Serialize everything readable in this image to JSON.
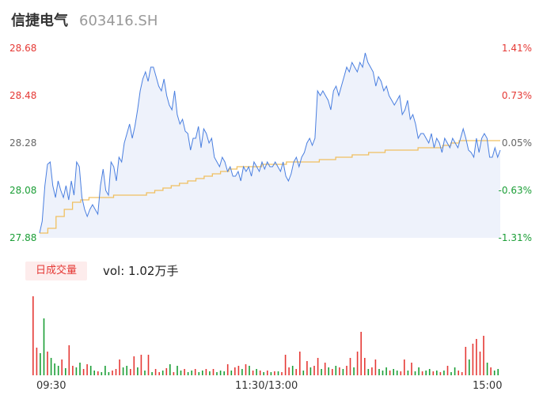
{
  "header": {
    "name": "信捷电气",
    "code": "603416.SH"
  },
  "volume": {
    "tag": "日成交量",
    "text": "vol: 1.02万手"
  },
  "colors": {
    "price_line": "#4a7fe0",
    "avg_line": "#f0c060",
    "up": "#e53935",
    "down": "#1b9e36",
    "fill": "#eef2fb"
  },
  "chart_data": [
    {
      "type": "line",
      "y_ticks": [
        "28.68",
        "28.48",
        "28.28",
        "28.08",
        "27.88"
      ],
      "pct_ticks": [
        "1.41%",
        "0.73%",
        "0.05%",
        "-0.63%",
        "-1.31%"
      ],
      "ylim": [
        27.88,
        28.68
      ],
      "x_tick_labels": [
        "09:30",
        "11:30/13:00",
        "15:00"
      ],
      "series": [
        {
          "key": "price",
          "values": [
            27.9,
            27.95,
            28.1,
            28.19,
            28.2,
            28.1,
            28.05,
            28.12,
            28.08,
            28.05,
            28.1,
            28.04,
            28.12,
            28.06,
            28.2,
            28.18,
            28.05,
            28.0,
            27.97,
            28.0,
            28.02,
            28.0,
            27.98,
            28.1,
            28.17,
            28.08,
            28.06,
            28.2,
            28.18,
            28.12,
            28.22,
            28.2,
            28.28,
            28.32,
            28.36,
            28.3,
            28.35,
            28.42,
            28.5,
            28.55,
            28.58,
            28.54,
            28.6,
            28.6,
            28.56,
            28.52,
            28.5,
            28.55,
            28.48,
            28.44,
            28.42,
            28.5,
            28.4,
            28.36,
            28.38,
            28.33,
            28.32,
            28.25,
            28.3,
            28.3,
            28.35,
            28.26,
            28.34,
            28.32,
            28.28,
            28.3,
            28.22,
            28.2,
            28.18,
            28.22,
            28.2,
            28.16,
            28.18,
            28.14,
            28.14,
            28.16,
            28.12,
            28.18,
            28.16,
            28.18,
            28.14,
            28.2,
            28.18,
            28.16,
            28.2,
            28.17,
            28.2,
            28.18,
            28.18,
            28.2,
            28.18,
            28.16,
            28.2,
            28.14,
            28.12,
            28.15,
            28.2,
            28.22,
            28.18,
            28.22,
            28.24,
            28.28,
            28.3,
            28.27,
            28.3,
            28.5,
            28.48,
            28.5,
            28.48,
            28.46,
            28.42,
            28.5,
            28.52,
            28.48,
            28.52,
            28.56,
            28.6,
            28.58,
            28.62,
            28.6,
            28.58,
            28.62,
            28.6,
            28.66,
            28.62,
            28.6,
            28.58,
            28.52,
            28.56,
            28.54,
            28.5,
            28.52,
            28.48,
            28.46,
            28.44,
            28.46,
            28.48,
            28.4,
            28.42,
            28.46,
            28.38,
            28.4,
            28.36,
            28.3,
            28.32,
            28.32,
            28.3,
            28.28,
            28.32,
            28.26,
            28.3,
            28.28,
            28.24,
            28.3,
            28.28,
            28.26,
            28.3,
            28.28,
            28.26,
            28.3,
            28.34,
            28.3,
            28.25,
            28.24,
            28.22,
            28.3,
            28.24,
            28.3,
            28.32,
            28.3,
            28.22,
            28.22,
            28.26,
            28.22,
            28.25
          ],
          "color": "#4a7fe0"
        },
        {
          "key": "avg",
          "values": [
            27.9,
            27.92,
            27.97,
            28.0,
            28.03,
            28.04,
            28.05,
            28.05,
            28.05,
            28.06,
            28.06,
            28.06,
            28.06,
            28.07,
            28.08,
            28.09,
            28.1,
            28.11,
            28.12,
            28.13,
            28.14,
            28.15,
            28.16,
            28.17,
            28.18,
            28.18,
            28.18,
            28.19,
            28.19,
            28.19,
            28.2,
            28.2,
            28.2,
            28.2,
            28.21,
            28.21,
            28.22,
            28.22,
            28.23,
            28.23,
            28.24,
            28.24,
            28.25,
            28.25,
            28.25,
            28.25,
            28.26,
            28.26,
            28.26,
            28.27,
            28.28,
            28.29,
            28.29,
            28.29,
            28.29,
            28.29,
            28.29
          ],
          "color": "#f0c060"
        }
      ]
    },
    {
      "type": "bar",
      "title": "",
      "values": [
        {
          "v": 1.0,
          "c": "up"
        },
        {
          "v": 0.35,
          "c": "up"
        },
        {
          "v": 0.28,
          "c": "down"
        },
        {
          "v": 0.72,
          "c": "down"
        },
        {
          "v": 0.3,
          "c": "up"
        },
        {
          "v": 0.22,
          "c": "down"
        },
        {
          "v": 0.15,
          "c": "down"
        },
        {
          "v": 0.12,
          "c": "down"
        },
        {
          "v": 0.2,
          "c": "up"
        },
        {
          "v": 0.09,
          "c": "down"
        },
        {
          "v": 0.38,
          "c": "up"
        },
        {
          "v": 0.12,
          "c": "up"
        },
        {
          "v": 0.1,
          "c": "down"
        },
        {
          "v": 0.16,
          "c": "down"
        },
        {
          "v": 0.08,
          "c": "up"
        },
        {
          "v": 0.14,
          "c": "up"
        },
        {
          "v": 0.12,
          "c": "down"
        },
        {
          "v": 0.06,
          "c": "down"
        },
        {
          "v": 0.05,
          "c": "up"
        },
        {
          "v": 0.04,
          "c": "down"
        },
        {
          "v": 0.12,
          "c": "down"
        },
        {
          "v": 0.04,
          "c": "down"
        },
        {
          "v": 0.06,
          "c": "up"
        },
        {
          "v": 0.08,
          "c": "up"
        },
        {
          "v": 0.2,
          "c": "up"
        },
        {
          "v": 0.1,
          "c": "down"
        },
        {
          "v": 0.12,
          "c": "down"
        },
        {
          "v": 0.08,
          "c": "up"
        },
        {
          "v": 0.24,
          "c": "up"
        },
        {
          "v": 0.1,
          "c": "down"
        },
        {
          "v": 0.26,
          "c": "up"
        },
        {
          "v": 0.06,
          "c": "down"
        },
        {
          "v": 0.26,
          "c": "up"
        },
        {
          "v": 0.04,
          "c": "down"
        },
        {
          "v": 0.08,
          "c": "up"
        },
        {
          "v": 0.04,
          "c": "up"
        },
        {
          "v": 0.06,
          "c": "down"
        },
        {
          "v": 0.09,
          "c": "up"
        },
        {
          "v": 0.14,
          "c": "down"
        },
        {
          "v": 0.04,
          "c": "up"
        },
        {
          "v": 0.12,
          "c": "down"
        },
        {
          "v": 0.06,
          "c": "down"
        },
        {
          "v": 0.08,
          "c": "up"
        },
        {
          "v": 0.04,
          "c": "down"
        },
        {
          "v": 0.06,
          "c": "down"
        },
        {
          "v": 0.08,
          "c": "up"
        },
        {
          "v": 0.04,
          "c": "down"
        },
        {
          "v": 0.06,
          "c": "down"
        },
        {
          "v": 0.08,
          "c": "up"
        },
        {
          "v": 0.05,
          "c": "down"
        },
        {
          "v": 0.08,
          "c": "up"
        },
        {
          "v": 0.04,
          "c": "down"
        },
        {
          "v": 0.06,
          "c": "down"
        },
        {
          "v": 0.05,
          "c": "down"
        },
        {
          "v": 0.14,
          "c": "up"
        },
        {
          "v": 0.06,
          "c": "down"
        },
        {
          "v": 0.1,
          "c": "up"
        },
        {
          "v": 0.12,
          "c": "up"
        },
        {
          "v": 0.08,
          "c": "down"
        },
        {
          "v": 0.14,
          "c": "up"
        },
        {
          "v": 0.12,
          "c": "down"
        },
        {
          "v": 0.06,
          "c": "up"
        },
        {
          "v": 0.08,
          "c": "down"
        },
        {
          "v": 0.06,
          "c": "up"
        },
        {
          "v": 0.04,
          "c": "down"
        },
        {
          "v": 0.06,
          "c": "up"
        },
        {
          "v": 0.04,
          "c": "down"
        },
        {
          "v": 0.05,
          "c": "up"
        },
        {
          "v": 0.05,
          "c": "down"
        },
        {
          "v": 0.04,
          "c": "up"
        },
        {
          "v": 0.26,
          "c": "up"
        },
        {
          "v": 0.1,
          "c": "up"
        },
        {
          "v": 0.12,
          "c": "down"
        },
        {
          "v": 0.08,
          "c": "up"
        },
        {
          "v": 0.3,
          "c": "up"
        },
        {
          "v": 0.06,
          "c": "down"
        },
        {
          "v": 0.18,
          "c": "up"
        },
        {
          "v": 0.1,
          "c": "down"
        },
        {
          "v": 0.12,
          "c": "up"
        },
        {
          "v": 0.22,
          "c": "up"
        },
        {
          "v": 0.08,
          "c": "down"
        },
        {
          "v": 0.16,
          "c": "up"
        },
        {
          "v": 0.1,
          "c": "down"
        },
        {
          "v": 0.08,
          "c": "up"
        },
        {
          "v": 0.12,
          "c": "down"
        },
        {
          "v": 0.1,
          "c": "up"
        },
        {
          "v": 0.08,
          "c": "down"
        },
        {
          "v": 0.12,
          "c": "up"
        },
        {
          "v": 0.22,
          "c": "up"
        },
        {
          "v": 0.1,
          "c": "down"
        },
        {
          "v": 0.3,
          "c": "up"
        },
        {
          "v": 0.55,
          "c": "up"
        },
        {
          "v": 0.22,
          "c": "up"
        },
        {
          "v": 0.08,
          "c": "down"
        },
        {
          "v": 0.1,
          "c": "up"
        },
        {
          "v": 0.2,
          "c": "up"
        },
        {
          "v": 0.08,
          "c": "down"
        },
        {
          "v": 0.06,
          "c": "down"
        },
        {
          "v": 0.1,
          "c": "down"
        },
        {
          "v": 0.06,
          "c": "up"
        },
        {
          "v": 0.08,
          "c": "down"
        },
        {
          "v": 0.06,
          "c": "down"
        },
        {
          "v": 0.05,
          "c": "up"
        },
        {
          "v": 0.2,
          "c": "up"
        },
        {
          "v": 0.06,
          "c": "down"
        },
        {
          "v": 0.16,
          "c": "up"
        },
        {
          "v": 0.05,
          "c": "down"
        },
        {
          "v": 0.1,
          "c": "down"
        },
        {
          "v": 0.05,
          "c": "up"
        },
        {
          "v": 0.06,
          "c": "down"
        },
        {
          "v": 0.08,
          "c": "down"
        },
        {
          "v": 0.05,
          "c": "up"
        },
        {
          "v": 0.06,
          "c": "down"
        },
        {
          "v": 0.04,
          "c": "up"
        },
        {
          "v": 0.06,
          "c": "down"
        },
        {
          "v": 0.12,
          "c": "up"
        },
        {
          "v": 0.04,
          "c": "down"
        },
        {
          "v": 0.1,
          "c": "down"
        },
        {
          "v": 0.06,
          "c": "up"
        },
        {
          "v": 0.04,
          "c": "up"
        },
        {
          "v": 0.36,
          "c": "up"
        },
        {
          "v": 0.2,
          "c": "down"
        },
        {
          "v": 0.4,
          "c": "up"
        },
        {
          "v": 0.46,
          "c": "up"
        },
        {
          "v": 0.3,
          "c": "up"
        },
        {
          "v": 0.5,
          "c": "up"
        },
        {
          "v": 0.16,
          "c": "down"
        },
        {
          "v": 0.1,
          "c": "up"
        },
        {
          "v": 0.06,
          "c": "down"
        },
        {
          "v": 0.08,
          "c": "down"
        }
      ]
    }
  ]
}
